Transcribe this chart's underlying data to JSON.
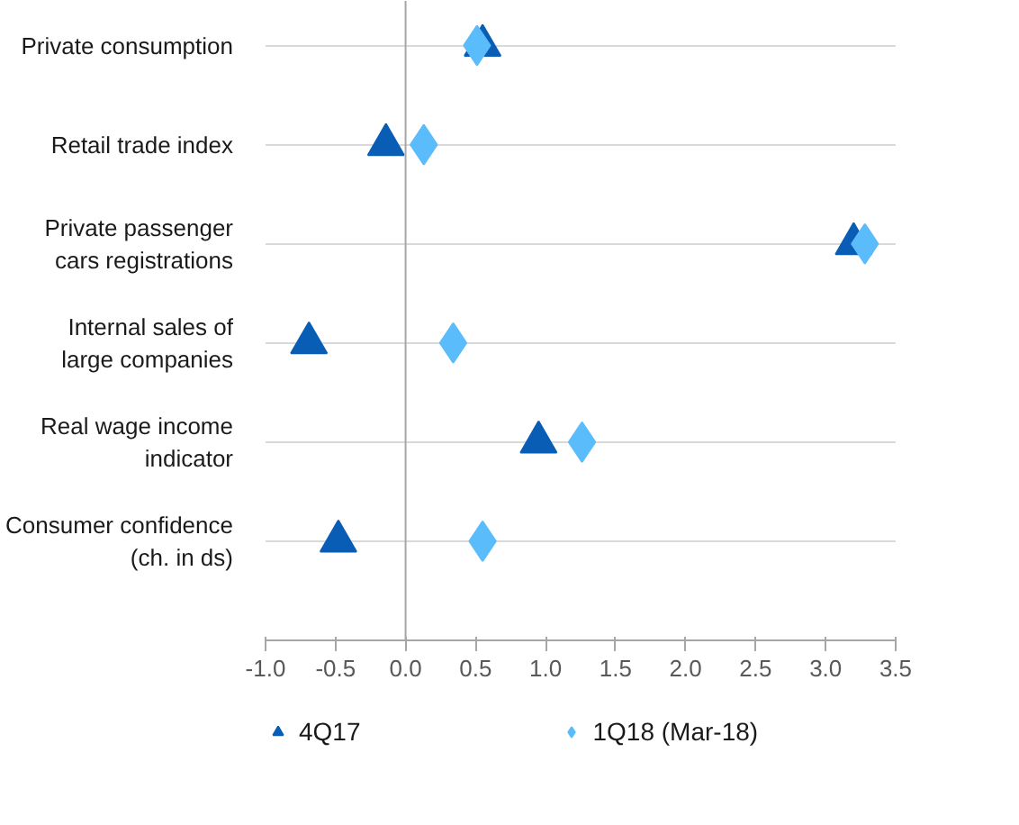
{
  "chart_data": {
    "type": "scatter",
    "categories": [
      "Private consumption",
      "Retail trade index",
      "Private passenger cars registrations",
      "Internal sales of large companies",
      "Real wage income indicator",
      "Consumer confidence (ch. in ds)"
    ],
    "orientation": "horizontal",
    "xlim": [
      -1.0,
      3.5
    ],
    "xticks": [
      {
        "value": -1.0,
        "label": "-1.0"
      },
      {
        "value": -0.5,
        "label": "-0.5"
      },
      {
        "value": 0.0,
        "label": "0.0"
      },
      {
        "value": 0.5,
        "label": "0.5"
      },
      {
        "value": 1.0,
        "label": "1.0"
      },
      {
        "value": 1.5,
        "label": "1.5"
      },
      {
        "value": 2.0,
        "label": "2.0"
      },
      {
        "value": 2.5,
        "label": "2.5"
      },
      {
        "value": 3.0,
        "label": "3.0"
      },
      {
        "value": 3.5,
        "label": "3.5"
      }
    ],
    "series": [
      {
        "name": "4Q17",
        "color": "#0a5db5",
        "marker": "triangle",
        "values": [
          0.55,
          -0.14,
          3.2,
          -0.69,
          0.95,
          -0.48
        ]
      },
      {
        "name": "1Q18 (Mar-18)",
        "color": "#5bbcfb",
        "marker": "diamond",
        "values": [
          0.51,
          0.13,
          3.28,
          0.34,
          1.26,
          0.55
        ]
      }
    ],
    "grid": "y",
    "legend": "bottom"
  }
}
